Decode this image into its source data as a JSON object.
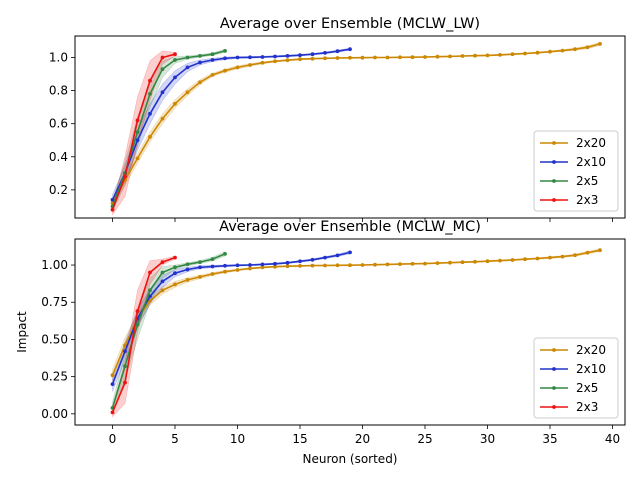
{
  "chart_data": [
    {
      "type": "line",
      "title": "Average over Ensemble (MCLW_LW)",
      "xlabel": "",
      "ylabel": "",
      "xlim": [
        -3,
        41
      ],
      "ylim": [
        0.03,
        1.13
      ],
      "yticks": [
        0.2,
        0.4,
        0.6,
        0.8,
        1.0
      ],
      "ytick_labels": [
        "0.2",
        "0.4",
        "0.6",
        "0.8",
        "1.0"
      ],
      "show_xtick_labels": false,
      "legend": "lower-right",
      "grid": false,
      "series": [
        {
          "name": "2x20",
          "color": "#cc8800",
          "x": [
            0,
            1,
            2,
            3,
            4,
            5,
            6,
            7,
            8,
            9,
            10,
            11,
            12,
            13,
            14,
            15,
            16,
            17,
            18,
            19,
            20,
            21,
            22,
            23,
            24,
            25,
            26,
            27,
            28,
            29,
            30,
            31,
            32,
            33,
            34,
            35,
            36,
            37,
            38,
            39
          ],
          "y": [
            0.12,
            0.26,
            0.39,
            0.52,
            0.63,
            0.72,
            0.79,
            0.85,
            0.895,
            0.92,
            0.94,
            0.955,
            0.968,
            0.977,
            0.984,
            0.99,
            0.993,
            0.995,
            0.997,
            0.998,
            0.999,
            1.0,
            1.0,
            1.001,
            1.002,
            1.003,
            1.005,
            1.007,
            1.009,
            1.011,
            1.013,
            1.016,
            1.02,
            1.024,
            1.029,
            1.035,
            1.042,
            1.05,
            1.062,
            1.082
          ],
          "band": [
            0.02,
            0.03,
            0.03,
            0.03,
            0.03,
            0.025,
            0.02,
            0.015,
            0.01,
            0.01,
            0.01,
            0.008,
            0.006,
            0.005,
            0.004,
            0.004,
            0.003,
            0.003,
            0.003,
            0.003,
            0.003,
            0.003,
            0.003,
            0.003,
            0.003,
            0.003,
            0.003,
            0.003,
            0.003,
            0.003,
            0.003,
            0.004,
            0.004,
            0.004,
            0.005,
            0.005,
            0.006,
            0.007,
            0.008,
            0.01
          ]
        },
        {
          "name": "2x10",
          "color": "#2233cc",
          "x": [
            0,
            1,
            2,
            3,
            4,
            5,
            6,
            7,
            8,
            9,
            10,
            11,
            12,
            13,
            14,
            15,
            16,
            17,
            18,
            19
          ],
          "y": [
            0.14,
            0.3,
            0.5,
            0.66,
            0.79,
            0.88,
            0.94,
            0.97,
            0.985,
            0.995,
            1.0,
            1.001,
            1.003,
            1.006,
            1.01,
            1.014,
            1.02,
            1.028,
            1.038,
            1.05
          ],
          "band": [
            0.03,
            0.05,
            0.06,
            0.06,
            0.05,
            0.04,
            0.025,
            0.015,
            0.01,
            0.008,
            0.006,
            0.005,
            0.005,
            0.005,
            0.005,
            0.005,
            0.005,
            0.005,
            0.006,
            0.007
          ]
        },
        {
          "name": "2x5",
          "color": "#338844",
          "x": [
            0,
            1,
            2,
            3,
            4,
            5,
            6,
            7,
            8,
            9
          ],
          "y": [
            0.1,
            0.3,
            0.55,
            0.78,
            0.93,
            0.985,
            1.0,
            1.01,
            1.02,
            1.04
          ],
          "band": [
            0.03,
            0.07,
            0.09,
            0.08,
            0.05,
            0.02,
            0.01,
            0.008,
            0.008,
            0.01
          ]
        },
        {
          "name": "2x3",
          "color": "#ee1111",
          "x": [
            0,
            1,
            2,
            3,
            4,
            5
          ],
          "y": [
            0.08,
            0.28,
            0.62,
            0.86,
            1.0,
            1.02
          ],
          "band": [
            0.03,
            0.12,
            0.14,
            0.12,
            0.04,
            0.01
          ]
        }
      ]
    },
    {
      "type": "line",
      "title": "Average over Ensemble (MCLW_MC)",
      "xlabel": "Neuron (sorted)",
      "ylabel": "Impact",
      "xlim": [
        -3,
        41
      ],
      "ylim": [
        -0.075,
        1.175
      ],
      "xticks": [
        0,
        5,
        10,
        15,
        20,
        25,
        30,
        35,
        40
      ],
      "xtick_labels": [
        "0",
        "5",
        "10",
        "15",
        "20",
        "25",
        "30",
        "35",
        "40"
      ],
      "yticks": [
        0.0,
        0.25,
        0.5,
        0.75,
        1.0
      ],
      "ytick_labels": [
        "0.00",
        "0.25",
        "0.50",
        "0.75",
        "1.00"
      ],
      "legend": "lower-right",
      "grid": false,
      "series": [
        {
          "name": "2x20",
          "color": "#cc8800",
          "x": [
            0,
            1,
            2,
            3,
            4,
            5,
            6,
            7,
            8,
            9,
            10,
            11,
            12,
            13,
            14,
            15,
            16,
            17,
            18,
            19,
            20,
            21,
            22,
            23,
            24,
            25,
            26,
            27,
            28,
            29,
            30,
            31,
            32,
            33,
            34,
            35,
            36,
            37,
            38,
            39
          ],
          "y": [
            0.26,
            0.46,
            0.64,
            0.76,
            0.83,
            0.87,
            0.9,
            0.92,
            0.94,
            0.955,
            0.967,
            0.977,
            0.984,
            0.989,
            0.992,
            0.994,
            0.996,
            0.997,
            0.998,
            0.999,
            1.0,
            1.002,
            1.004,
            1.006,
            1.008,
            1.01,
            1.013,
            1.016,
            1.019,
            1.022,
            1.026,
            1.03,
            1.034,
            1.039,
            1.044,
            1.05,
            1.057,
            1.066,
            1.083,
            1.1
          ],
          "band": [
            0.04,
            0.05,
            0.04,
            0.03,
            0.025,
            0.02,
            0.015,
            0.012,
            0.01,
            0.008,
            0.006,
            0.005,
            0.004,
            0.004,
            0.003,
            0.003,
            0.003,
            0.003,
            0.003,
            0.003,
            0.003,
            0.003,
            0.003,
            0.003,
            0.003,
            0.003,
            0.003,
            0.003,
            0.004,
            0.004,
            0.004,
            0.004,
            0.005,
            0.005,
            0.005,
            0.006,
            0.006,
            0.007,
            0.008,
            0.01
          ]
        },
        {
          "name": "2x10",
          "color": "#2233cc",
          "x": [
            0,
            1,
            2,
            3,
            4,
            5,
            6,
            7,
            8,
            9,
            10,
            11,
            12,
            13,
            14,
            15,
            16,
            17,
            18,
            19
          ],
          "y": [
            0.2,
            0.42,
            0.64,
            0.79,
            0.89,
            0.945,
            0.97,
            0.985,
            0.99,
            0.995,
            0.998,
            1.0,
            1.004,
            1.008,
            1.015,
            1.025,
            1.035,
            1.05,
            1.065,
            1.085
          ],
          "band": [
            0.05,
            0.06,
            0.06,
            0.05,
            0.04,
            0.025,
            0.015,
            0.01,
            0.008,
            0.006,
            0.005,
            0.005,
            0.005,
            0.005,
            0.005,
            0.006,
            0.006,
            0.007,
            0.008,
            0.01
          ]
        },
        {
          "name": "2x5",
          "color": "#338844",
          "x": [
            0,
            1,
            2,
            3,
            4,
            5,
            6,
            7,
            8,
            9
          ],
          "y": [
            0.04,
            0.32,
            0.6,
            0.83,
            0.95,
            0.985,
            1.005,
            1.02,
            1.04,
            1.075
          ],
          "band": [
            0.04,
            0.09,
            0.1,
            0.08,
            0.04,
            0.015,
            0.01,
            0.01,
            0.012,
            0.015
          ]
        },
        {
          "name": "2x3",
          "color": "#ee1111",
          "x": [
            0,
            1,
            2,
            3,
            4,
            5
          ],
          "y": [
            0.01,
            0.21,
            0.69,
            0.95,
            1.02,
            1.05
          ],
          "band": [
            0.03,
            0.14,
            0.14,
            0.08,
            0.02,
            0.01
          ]
        }
      ]
    }
  ]
}
